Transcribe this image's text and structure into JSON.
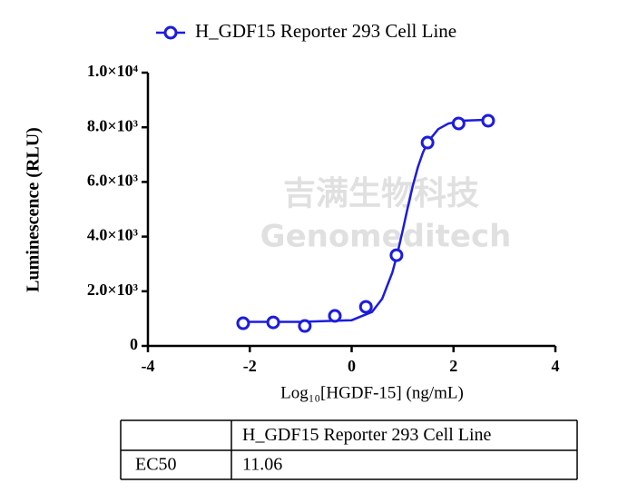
{
  "chart_data": {
    "type": "scatter",
    "x_label": "Log₁₀[HGDF-15] (ng/mL)",
    "y_label": "Luminescence (RLU)",
    "watermark": [
      "吉满生物科技",
      "Genomeditech"
    ],
    "legend": "top",
    "xlim": [
      -4,
      4
    ],
    "xticks": [
      -4,
      -2,
      0,
      2,
      4
    ],
    "ylim": [
      0,
      10000
    ],
    "yticks": [
      0,
      {
        "value": 2000,
        "label": "2.0×10³"
      },
      {
        "value": 4000,
        "label": "4.0×10³"
      },
      {
        "value": 6000,
        "label": "6.0×10³"
      },
      {
        "value": 8000,
        "label": "8.0×10³"
      },
      {
        "value": 10000,
        "label": "1.0×10⁴"
      }
    ],
    "series": [
      {
        "name": "H_GDF15 Reporter 293 Cell Line",
        "color": "#1c1ce0",
        "x": [
          -2.13,
          -1.54,
          -0.92,
          -0.33,
          0.28,
          0.88,
          1.49,
          2.1,
          2.68
        ],
        "values": [
          830,
          860,
          730,
          1100,
          1430,
          3320,
          7440,
          8140,
          8240
        ],
        "curve": {
          "x": [
            -2.12,
            -1,
            0,
            0.4,
            0.6,
            0.8,
            0.9,
            1.0,
            1.1,
            1.2,
            1.3,
            1.4,
            1.5,
            1.7,
            1.9,
            2.2,
            2.68
          ],
          "values": [
            880,
            881,
            940,
            1243,
            1728,
            2693,
            3396,
            4203,
            5054,
            5853,
            6541,
            7077,
            7473,
            7933,
            8139,
            8244,
            8277
          ]
        }
      }
    ]
  },
  "table": {
    "header": [
      "H_GDF15 Reporter 293 Cell Line"
    ],
    "rows": [
      {
        "label": "EC50",
        "values": [
          "11.06"
        ]
      }
    ]
  }
}
